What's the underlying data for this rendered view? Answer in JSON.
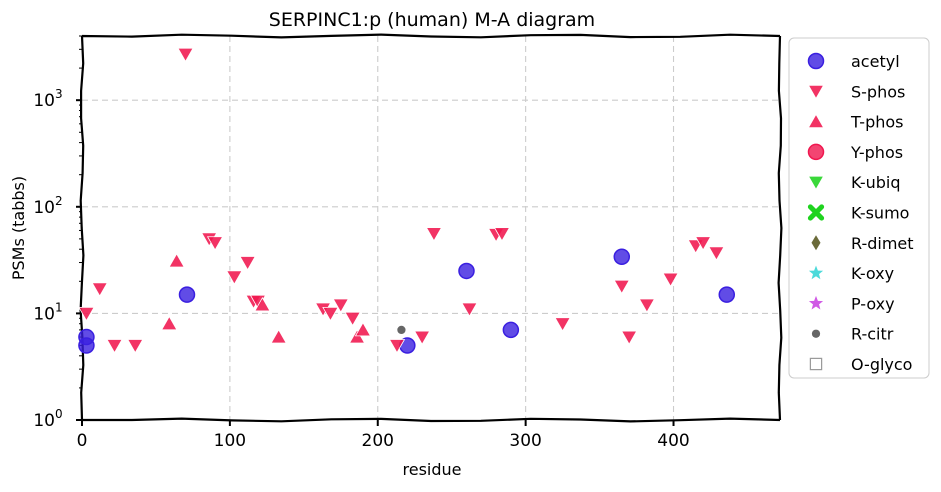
{
  "chart_data": {
    "type": "scatter",
    "title": "SERPINC1:p (human) M-A diagram",
    "xlabel": "residue",
    "ylabel": "PSMs (tabbs)",
    "xlim": [
      0,
      472
    ],
    "ylim": [
      1,
      4000
    ],
    "yscale": "log",
    "xticks": [
      0,
      100,
      200,
      300,
      400
    ],
    "yticks": [
      {
        "value": 1,
        "base": "10",
        "exp": "0"
      },
      {
        "value": 10,
        "base": "10",
        "exp": "1"
      },
      {
        "value": 100,
        "base": "10",
        "exp": "2"
      },
      {
        "value": 1000,
        "base": "10",
        "exp": "3"
      }
    ],
    "grid": true,
    "legend_position": "outside-right",
    "series": [
      {
        "name": "acetyl",
        "marker": "circle",
        "color": "#3a1fe0",
        "points": [
          [
            3,
            6
          ],
          [
            3,
            5
          ],
          [
            71,
            15
          ],
          [
            220,
            5
          ],
          [
            260,
            25
          ],
          [
            290,
            7
          ],
          [
            365,
            34
          ],
          [
            436,
            15
          ]
        ]
      },
      {
        "name": "S-phos",
        "marker": "triangle-down",
        "color": "#f0174f",
        "points": [
          [
            70,
            2700
          ],
          [
            3,
            10
          ],
          [
            12,
            17
          ],
          [
            22,
            5
          ],
          [
            36,
            5
          ],
          [
            86,
            50
          ],
          [
            90,
            46
          ],
          [
            103,
            22
          ],
          [
            112,
            30
          ],
          [
            116,
            13
          ],
          [
            119,
            13
          ],
          [
            163,
            11
          ],
          [
            168,
            10
          ],
          [
            175,
            12
          ],
          [
            183,
            9
          ],
          [
            213,
            5
          ],
          [
            230,
            6
          ],
          [
            238,
            56
          ],
          [
            280,
            55
          ],
          [
            284,
            56
          ],
          [
            262,
            11
          ],
          [
            325,
            8
          ],
          [
            365,
            18
          ],
          [
            370,
            6
          ],
          [
            382,
            12
          ],
          [
            398,
            21
          ],
          [
            415,
            43
          ],
          [
            420,
            46
          ],
          [
            429,
            37
          ]
        ]
      },
      {
        "name": "T-phos",
        "marker": "triangle-up",
        "color": "#f0174f",
        "points": [
          [
            59,
            8
          ],
          [
            64,
            31
          ],
          [
            122,
            12
          ],
          [
            133,
            6
          ],
          [
            186,
            6
          ],
          [
            190,
            7
          ]
        ]
      },
      {
        "name": "Y-phos",
        "marker": "circle",
        "color": "#f0174f",
        "points": []
      },
      {
        "name": "K-ubiq",
        "marker": "triangle-down",
        "color": "#1fd31f",
        "points": []
      },
      {
        "name": "K-sumo",
        "marker": "x",
        "color": "#1fd31f",
        "points": []
      },
      {
        "name": "R-dimet",
        "marker": "diamond",
        "color": "#6b6b3a",
        "points": []
      },
      {
        "name": "K-oxy",
        "marker": "star",
        "color": "#2dd4d4",
        "points": []
      },
      {
        "name": "P-oxy",
        "marker": "star",
        "color": "#c83ce0",
        "points": []
      },
      {
        "name": "R-citr",
        "marker": "small-circle",
        "color": "#666666",
        "points": [
          [
            216,
            7
          ]
        ]
      },
      {
        "name": "O-glyco",
        "marker": "square-open",
        "color": "#999999",
        "points": []
      }
    ]
  }
}
